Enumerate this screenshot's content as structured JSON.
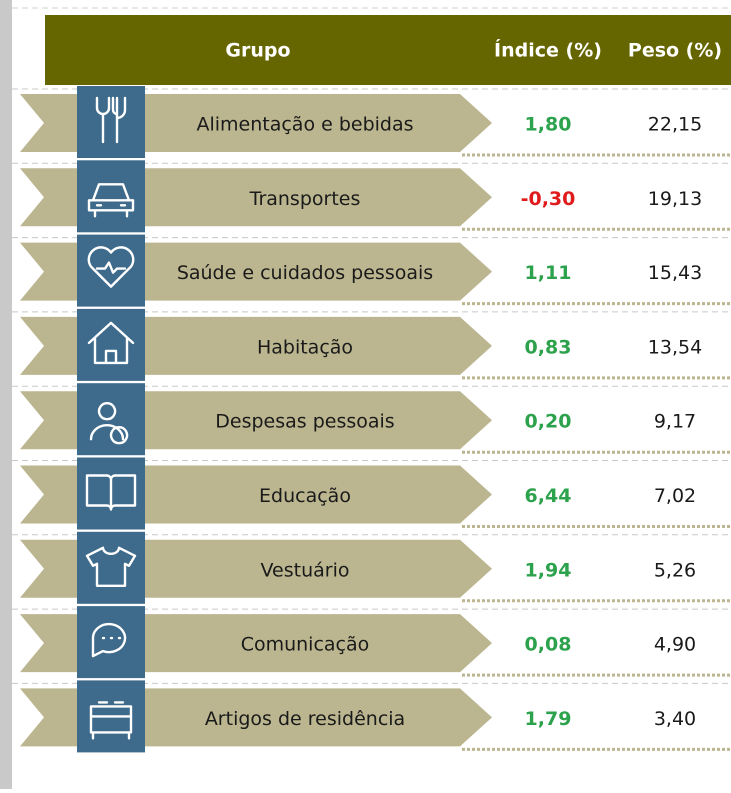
{
  "table": {
    "header": [
      "Grupo",
      "Índice (%)",
      "Peso (%)"
    ],
    "rows": [
      {
        "label": "Alimentação e bebidas",
        "indice": "1,80",
        "peso": "22,15",
        "color": "#2ca24c"
      },
      {
        "label": "Transportes",
        "indice": "-0,30",
        "peso": "19,13",
        "color": "#e01b1b"
      },
      {
        "label": "Saúde e cuidados pessoais",
        "indice": "1,11",
        "peso": "15,43",
        "color": "#2ca24c"
      },
      {
        "label": "Habitação",
        "indice": "0,83",
        "peso": "13,54",
        "color": "#2ca24c"
      },
      {
        "label": "Despesas pessoais",
        "indice": "0,20",
        "peso": "9,17",
        "color": "#2ca24c"
      },
      {
        "label": "Educação",
        "indice": "6,44",
        "peso": "7,02",
        "color": "#2ca24c"
      },
      {
        "label": "Vestuário",
        "indice": "1,94",
        "peso": "5,26",
        "color": "#2ca24c"
      },
      {
        "label": "Comunicação",
        "indice": "0,08",
        "peso": "4,90",
        "color": "#2ca24c"
      },
      {
        "label": "Artigos de residência",
        "indice": "1,79",
        "peso": "3,40",
        "color": "#2ca24c"
      }
    ]
  }
}
